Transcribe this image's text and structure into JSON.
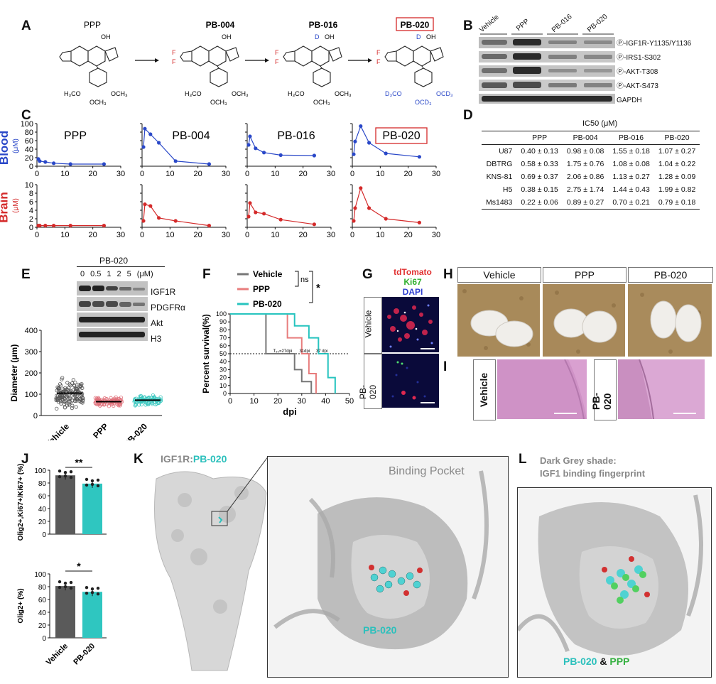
{
  "panels": {
    "A": "A",
    "B": "B",
    "C": "C",
    "D": "D",
    "E": "E",
    "F": "F",
    "G": "G",
    "H": "H",
    "I": "I",
    "J": "J",
    "K": "K",
    "L": "L"
  },
  "A": {
    "compounds": [
      "PPP",
      "PB-004",
      "PB-016",
      "PB-020"
    ],
    "labels": {
      "oh": "OH",
      "f": "F",
      "d": "D",
      "h3co": "H₃CO",
      "och3": "OCH₃",
      "d3co": "D₃CO",
      "ocd3": "OCD₃"
    }
  },
  "B": {
    "lanes": [
      "Vehicle",
      "PPP",
      "PB-016",
      "PB-020"
    ],
    "bands": [
      "Ⓟ-IGF1R-Y1135/Y1136",
      "Ⓟ-IRS1-S302",
      "Ⓟ-AKT-T308",
      "Ⓟ-AKT-S473",
      "GAPDH"
    ]
  },
  "C": {
    "row_labels": {
      "blood": "Blood",
      "brain": "Brain",
      "unit": "(μM)",
      "hrs": "Hrs"
    },
    "x_ticks": [
      "0",
      "10",
      "20",
      "30"
    ],
    "blood_y_ticks": [
      "0",
      "20",
      "40",
      "60",
      "80",
      "100"
    ],
    "brain_y_ticks": [
      "0",
      "2",
      "4",
      "6",
      "8",
      "10"
    ],
    "colors": {
      "blood": "#2a48c8",
      "brain": "#d42a2a"
    }
  },
  "chart_data": [
    {
      "type": "line",
      "title": "PPP",
      "ylabel": "Blood (μM)",
      "ylim": [
        0,
        100
      ],
      "xlim": [
        0,
        30
      ],
      "series": [
        {
          "x": [
            0.5,
            1,
            3,
            6,
            12,
            24
          ],
          "values": [
            17,
            12,
            10,
            7,
            5,
            5
          ]
        }
      ]
    },
    {
      "type": "line",
      "title": "PB-004",
      "ylabel": "",
      "ylim": [
        0,
        100
      ],
      "xlim": [
        0,
        30
      ],
      "series": [
        {
          "x": [
            0.5,
            1,
            3,
            6,
            12,
            24
          ],
          "values": [
            45,
            88,
            75,
            55,
            12,
            5
          ]
        }
      ]
    },
    {
      "type": "line",
      "title": "PB-016",
      "ylabel": "",
      "ylim": [
        0,
        100
      ],
      "xlim": [
        0,
        30
      ],
      "series": [
        {
          "x": [
            0.5,
            1,
            3,
            6,
            12,
            24
          ],
          "values": [
            50,
            70,
            42,
            32,
            26,
            25
          ]
        }
      ]
    },
    {
      "type": "line",
      "title": "PB-020",
      "ylabel": "",
      "ylim": [
        0,
        100
      ],
      "xlim": [
        0,
        30
      ],
      "series": [
        {
          "x": [
            0.5,
            1,
            3,
            6,
            12,
            24
          ],
          "values": [
            28,
            58,
            94,
            55,
            30,
            22
          ]
        }
      ]
    },
    {
      "type": "line",
      "title": "",
      "ylabel": "Brain (μM)",
      "ylim": [
        0,
        10
      ],
      "xlim": [
        0,
        30
      ],
      "series": [
        {
          "x": [
            0.5,
            1,
            3,
            6,
            12,
            24
          ],
          "values": [
            0.4,
            0.4,
            0.4,
            0.4,
            0.4,
            0.4
          ]
        }
      ]
    },
    {
      "type": "line",
      "title": "",
      "ylabel": "",
      "ylim": [
        0,
        10
      ],
      "xlim": [
        0,
        30
      ],
      "series": [
        {
          "x": [
            0.5,
            1,
            3,
            6,
            12,
            24
          ],
          "values": [
            1.5,
            5.4,
            5.0,
            2.2,
            1.5,
            0.4
          ]
        }
      ]
    },
    {
      "type": "line",
      "title": "",
      "ylabel": "",
      "ylim": [
        0,
        10
      ],
      "xlim": [
        0,
        30
      ],
      "series": [
        {
          "x": [
            0.5,
            1,
            3,
            6,
            12,
            24
          ],
          "values": [
            2.5,
            5.7,
            3.5,
            3.2,
            1.8,
            0.7
          ]
        }
      ]
    },
    {
      "type": "line",
      "title": "",
      "ylabel": "",
      "ylim": [
        0,
        10
      ],
      "xlim": [
        0,
        30
      ],
      "series": [
        {
          "x": [
            0.5,
            1,
            3,
            6,
            12,
            24
          ],
          "values": [
            1.5,
            4.5,
            9.2,
            4.5,
            2.0,
            1.1
          ]
        }
      ]
    }
  ],
  "D": {
    "title": "IC50 (μM)",
    "columns": [
      "",
      "PPP",
      "PB-004",
      "PB-016",
      "PB-020"
    ],
    "rows": [
      [
        "U87",
        "0.40 ± 0.13",
        "0.98 ± 0.08",
        "1.55 ± 0.18",
        "1.07 ± 0.27"
      ],
      [
        "DBTRG",
        "0.58 ± 0.33",
        "1.75 ± 0.76",
        "1.08 ± 0.08",
        "1.04 ± 0.22"
      ],
      [
        "KNS-81",
        "0.69 ± 0.37",
        "2.06 ± 0.86",
        "1.13 ± 0.27",
        "1.28 ± 0.09"
      ],
      [
        "H5",
        "0.38 ± 0.15",
        "2.75 ± 1.74",
        "1.44 ± 0.43",
        "1.99 ± 0.82"
      ],
      [
        "Ms1483",
        "0.22 ± 0.06",
        "0.89 ± 0.27",
        "0.70 ± 0.21",
        "0.79 ± 0.18"
      ]
    ]
  },
  "E": {
    "blot_title": "PB-020",
    "doses": [
      "0",
      "0.5",
      "1",
      "2",
      "5",
      "(μM)"
    ],
    "bands": [
      "IGF1R",
      "PDGFRα",
      "Akt",
      "H3"
    ],
    "ylabel": "Diameter (μm)",
    "y_ticks": [
      "0",
      "100",
      "200",
      "300",
      "400"
    ],
    "groups": [
      "Vehicle",
      "PPP",
      "PB-020"
    ],
    "means": [
      105,
      65,
      72
    ],
    "colors": [
      "#555555",
      "#e0707a",
      "#3cc8c0"
    ]
  },
  "F": {
    "ylabel": "Percent survival(%)",
    "xlabel": "dpi",
    "y_ticks": [
      "0",
      "10",
      "20",
      "30",
      "40",
      "50",
      "60",
      "70",
      "80",
      "90",
      "100"
    ],
    "x_ticks": [
      "0",
      "10",
      "20",
      "30",
      "40",
      "50"
    ],
    "legend": [
      "Vehicle",
      "PPP",
      "PB-020"
    ],
    "ns": "ns",
    "star": "*",
    "medians": [
      "T₅₀=27dpi",
      "31dpi",
      "37 dpi"
    ],
    "colors": [
      "#777777",
      "#e87d7d",
      "#27c4bf"
    ]
  },
  "G": {
    "stains": [
      "tdTomato",
      "Ki67",
      "DAPI"
    ],
    "rows": [
      "Vehicle",
      "PB-020"
    ]
  },
  "H": {
    "groups": [
      "Vehicle",
      "PPP",
      "PB-020"
    ]
  },
  "I": {
    "rows": [
      "Vehicle",
      "PB-020"
    ]
  },
  "J": {
    "ylabel_top": "Olig2+,Ki67+/Ki67+ (%)",
    "ylabel_bottom": "Olig2+ (%)",
    "y_ticks": [
      "0",
      "20",
      "40",
      "60",
      "80",
      "100"
    ],
    "groups": [
      "Vehicle",
      "PB-020"
    ],
    "top_values": [
      92,
      79
    ],
    "bottom_values": [
      81,
      72
    ],
    "sig_top": "**",
    "sig_bottom": "*"
  },
  "K": {
    "title_a": "IGF1R",
    "title_sep": ":",
    "title_b": "PB-020",
    "pocket": "Binding Pocket",
    "ligand": "PB-020"
  },
  "L": {
    "caption_1": "Dark Grey shade:",
    "caption_2": "IGF1 binding fingerprint",
    "lig_a": "PB-020",
    "amp": " & ",
    "lig_b": "PPP"
  }
}
